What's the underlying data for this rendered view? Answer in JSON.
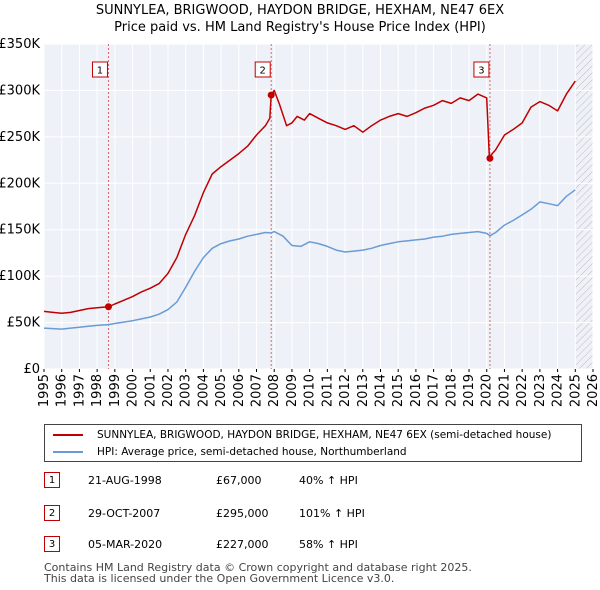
{
  "chart_data": {
    "type": "line",
    "title": "SUNNYLEA, BRIGWOOD, HAYDON BRIDGE, HEXHAM, NE47 6EX",
    "subtitle": "Price paid vs. HM Land Registry's House Price Index (HPI)",
    "xlim": [
      1995,
      2026
    ],
    "ylim": [
      0,
      350000
    ],
    "xticks": [
      "1995",
      "1996",
      "1997",
      "1998",
      "1999",
      "2000",
      "2001",
      "2002",
      "2003",
      "2004",
      "2005",
      "2006",
      "2007",
      "2008",
      "2009",
      "2010",
      "2011",
      "2012",
      "2013",
      "2014",
      "2015",
      "2016",
      "2017",
      "2018",
      "2019",
      "2020",
      "2021",
      "2022",
      "2023",
      "2024",
      "2025",
      "2026"
    ],
    "yticks": [
      {
        "value": 0,
        "label": "£0"
      },
      {
        "value": 50000,
        "label": "£50K"
      },
      {
        "value": 100000,
        "label": "£100K"
      },
      {
        "value": 150000,
        "label": "£150K"
      },
      {
        "value": 200000,
        "label": "£200K"
      },
      {
        "value": 250000,
        "label": "£250K"
      },
      {
        "value": 300000,
        "label": "£300K"
      },
      {
        "value": 350000,
        "label": "£350K"
      }
    ],
    "grid": true,
    "forecast_start": 2025.0,
    "series": [
      {
        "name": "SUNNYLEA, BRIGWOOD, HAYDON BRIDGE, HEXHAM, NE47 6EX (semi-detached house)",
        "color": "#c00000",
        "x": [
          1995.0,
          1995.5,
          1996.0,
          1996.5,
          1997.0,
          1997.5,
          1998.0,
          1998.64,
          1999.0,
          1999.5,
          2000.0,
          2000.5,
          2001.0,
          2001.5,
          2002.0,
          2002.5,
          2003.0,
          2003.5,
          2004.0,
          2004.5,
          2005.0,
          2005.5,
          2006.0,
          2006.5,
          2007.0,
          2007.5,
          2007.75,
          2007.83,
          2008.0,
          2008.3,
          2008.7,
          2009.0,
          2009.3,
          2009.7,
          2010.0,
          2010.5,
          2011.0,
          2011.5,
          2012.0,
          2012.5,
          2013.0,
          2013.5,
          2014.0,
          2014.5,
          2015.0,
          2015.5,
          2016.0,
          2016.5,
          2017.0,
          2017.5,
          2018.0,
          2018.5,
          2019.0,
          2019.5,
          2020.0,
          2020.15,
          2020.18,
          2020.5,
          2021.0,
          2021.5,
          2022.0,
          2022.5,
          2023.0,
          2023.5,
          2024.0,
          2024.5,
          2025.0
        ],
        "y": [
          62000,
          61000,
          60000,
          61000,
          63000,
          65000,
          66000,
          67000,
          70000,
          74000,
          78000,
          83000,
          87000,
          92000,
          103000,
          120000,
          145000,
          165000,
          190000,
          210000,
          218000,
          225000,
          232000,
          240000,
          252000,
          262000,
          270000,
          295000,
          300000,
          285000,
          262000,
          265000,
          272000,
          268000,
          275000,
          270000,
          265000,
          262000,
          258000,
          262000,
          255000,
          262000,
          268000,
          272000,
          275000,
          272000,
          276000,
          281000,
          284000,
          289000,
          286000,
          292000,
          289000,
          296000,
          292000,
          227000,
          229000,
          236000,
          252000,
          258000,
          265000,
          282000,
          288000,
          284000,
          278000,
          296000,
          310000
        ]
      },
      {
        "name": "HPI: Average price, semi-detached house, Northumberland",
        "color": "#6a9bd4",
        "x": [
          1995.0,
          1995.5,
          1996.0,
          1996.5,
          1997.0,
          1997.5,
          1998.0,
          1998.64,
          1999.0,
          1999.5,
          2000.0,
          2000.5,
          2001.0,
          2001.5,
          2002.0,
          2002.5,
          2003.0,
          2003.5,
          2004.0,
          2004.5,
          2005.0,
          2005.5,
          2006.0,
          2006.5,
          2007.0,
          2007.5,
          2007.83,
          2008.0,
          2008.5,
          2009.0,
          2009.5,
          2010.0,
          2010.5,
          2011.0,
          2011.5,
          2012.0,
          2012.5,
          2013.0,
          2013.5,
          2014.0,
          2014.5,
          2015.0,
          2015.5,
          2016.0,
          2016.5,
          2017.0,
          2017.5,
          2018.0,
          2018.5,
          2019.0,
          2019.5,
          2020.0,
          2020.18,
          2020.5,
          2021.0,
          2021.5,
          2022.0,
          2022.5,
          2023.0,
          2023.5,
          2024.0,
          2024.5,
          2025.0
        ],
        "y": [
          44000,
          43500,
          43000,
          44000,
          45000,
          46000,
          47000,
          47800,
          49000,
          50500,
          52000,
          54000,
          56000,
          59000,
          64000,
          72000,
          88000,
          105000,
          120000,
          130000,
          135000,
          138000,
          140000,
          143000,
          145000,
          147000,
          146500,
          148000,
          143000,
          133000,
          132000,
          137000,
          135000,
          132000,
          128000,
          126000,
          127000,
          128000,
          130000,
          133000,
          135000,
          137000,
          138000,
          139000,
          140000,
          142000,
          143000,
          145000,
          146000,
          147000,
          148000,
          146000,
          143500,
          147000,
          155000,
          160000,
          166000,
          172000,
          180000,
          178000,
          176000,
          186000,
          193000
        ]
      }
    ],
    "sales": [
      {
        "num": "1",
        "x": 1998.64,
        "y": 67000,
        "date": "21-AUG-1998",
        "price": "£67,000",
        "hpi": "40% ↑ HPI"
      },
      {
        "num": "2",
        "x": 2007.83,
        "y": 295000,
        "date": "29-OCT-2007",
        "price": "£295,000",
        "hpi": "101% ↑ HPI"
      },
      {
        "num": "3",
        "x": 2020.18,
        "y": 227000,
        "date": "05-MAR-2020",
        "price": "£227,000",
        "hpi": "58% ↑ HPI"
      }
    ]
  },
  "legend": {
    "property_label": "SUNNYLEA, BRIGWOOD, HAYDON BRIDGE, HEXHAM, NE47 6EX (semi-detached house)",
    "hpi_label": "HPI: Average price, semi-detached house, Northumberland"
  },
  "footer": {
    "line1": "Contains HM Land Registry data © Crown copyright and database right 2025.",
    "line2": "This data is licensed under the Open Government Licence v3.0."
  }
}
